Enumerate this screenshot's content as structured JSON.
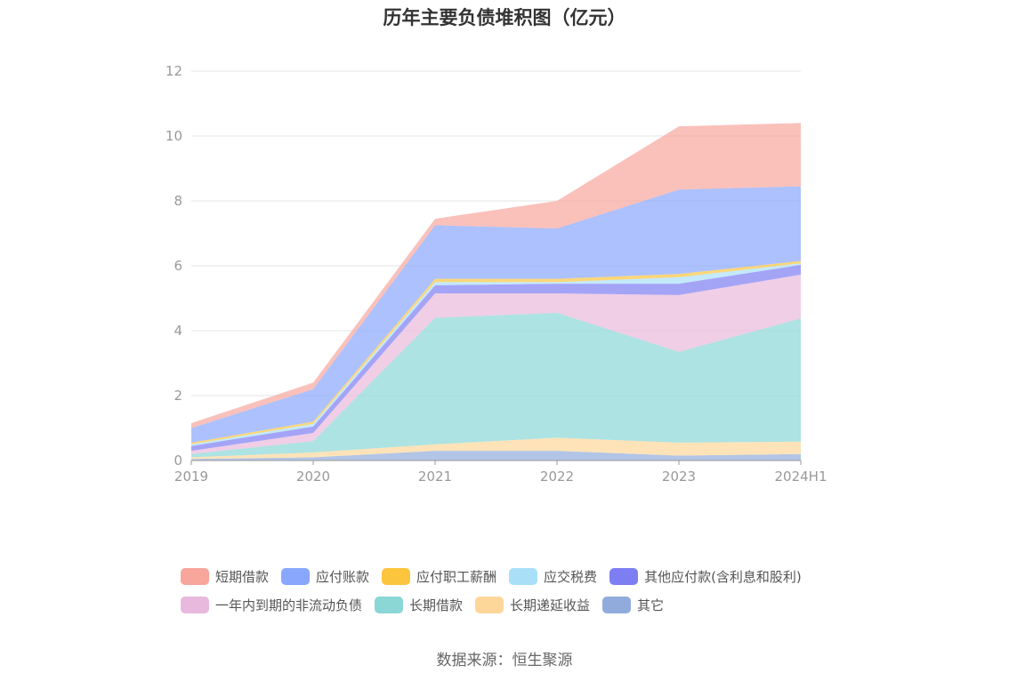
{
  "chart_data": {
    "type": "area",
    "stacked": true,
    "title": "历年主要负债堆积图（亿元）",
    "categories": [
      "2019",
      "2020",
      "2021",
      "2022",
      "2023",
      "2024H1"
    ],
    "ylim": [
      0,
      12
    ],
    "yticks": [
      "0",
      "2",
      "4",
      "6",
      "8",
      "10",
      "12"
    ],
    "grid": true,
    "legend_position": "bottom",
    "series": [
      {
        "name": "其它",
        "color": "#91acdc",
        "values": [
          0.05,
          0.1,
          0.3,
          0.3,
          0.15,
          0.2
        ]
      },
      {
        "name": "长期递延收益",
        "color": "#fdd79a",
        "values": [
          0.05,
          0.15,
          0.2,
          0.4,
          0.4,
          0.38
        ]
      },
      {
        "name": "长期借款",
        "color": "#8ad7d6",
        "values": [
          0.1,
          0.35,
          3.9,
          3.85,
          2.8,
          3.8
        ]
      },
      {
        "name": "一年内到期的非流动负债",
        "color": "#e8b9dc",
        "values": [
          0.1,
          0.25,
          0.75,
          0.6,
          1.75,
          1.35
        ]
      },
      {
        "name": "其他应付款(含利息和股利)",
        "color": "#7e7ef3",
        "values": [
          0.15,
          0.2,
          0.25,
          0.3,
          0.35,
          0.3
        ]
      },
      {
        "name": "应交税费",
        "color": "#a9e0f8",
        "values": [
          0.05,
          0.08,
          0.1,
          0.05,
          0.2,
          0.05
        ]
      },
      {
        "name": "应付职工薪酬",
        "color": "#fbc53e",
        "values": [
          0.05,
          0.07,
          0.1,
          0.1,
          0.1,
          0.07
        ]
      },
      {
        "name": "应付账款",
        "color": "#89a7fd",
        "values": [
          0.45,
          1.0,
          1.65,
          1.55,
          2.6,
          2.3
        ]
      },
      {
        "name": "短期借款",
        "color": "#f8a59c",
        "values": [
          0.15,
          0.2,
          0.2,
          0.85,
          1.95,
          1.95
        ]
      }
    ]
  },
  "legend": {
    "row1": [
      "短期借款",
      "应付账款",
      "应付职工薪酬",
      "应交税费",
      "其他应付款(含利息和股利)"
    ],
    "row2": [
      "一年内到期的非流动负债",
      "长期借款",
      "长期递延收益",
      "其它"
    ]
  },
  "source": "数据来源：恒生聚源"
}
